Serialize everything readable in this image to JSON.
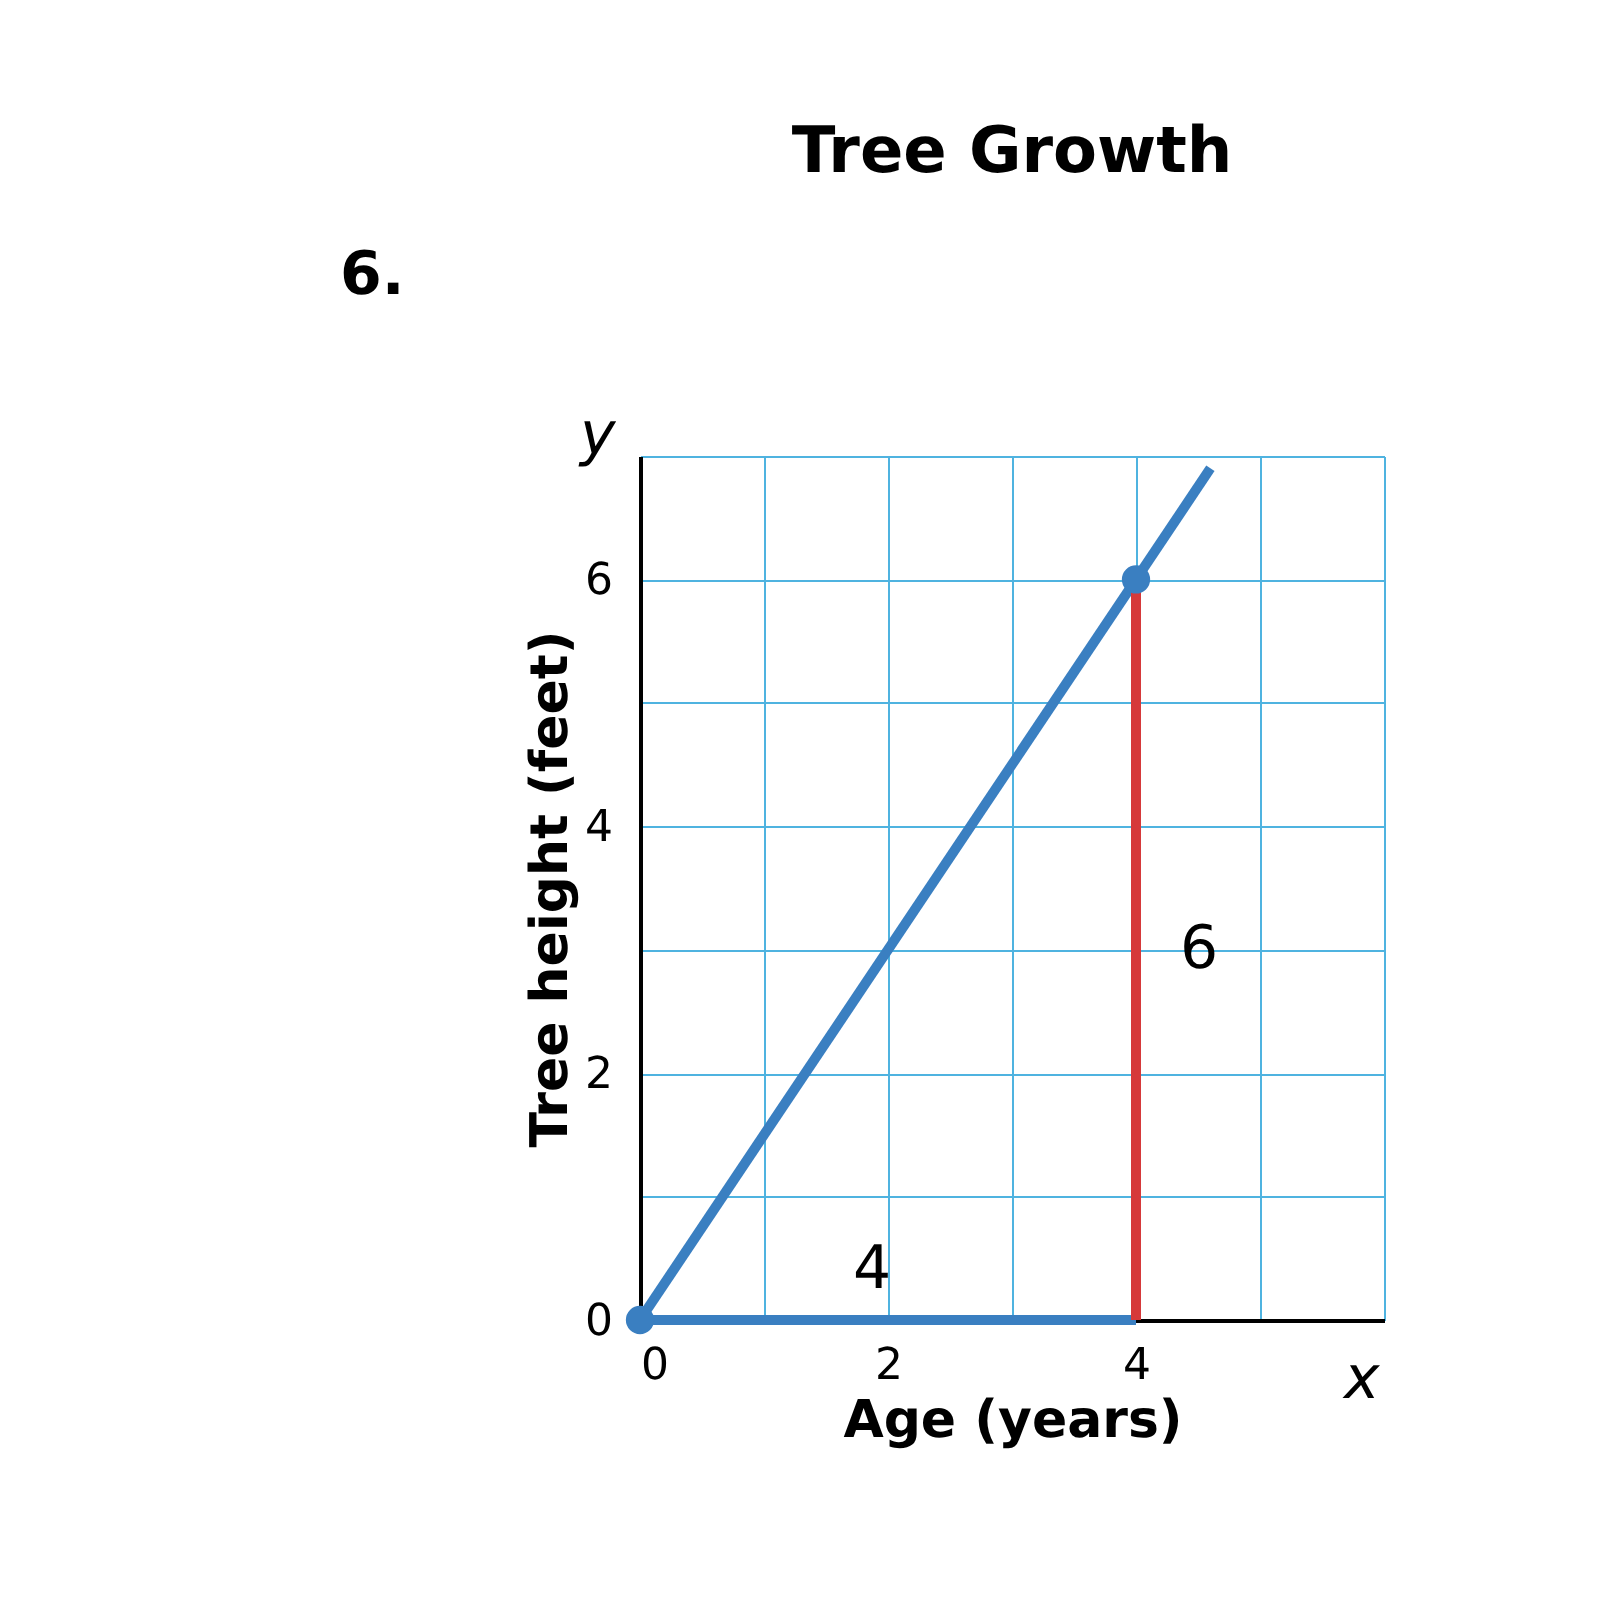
{
  "chart_data": {
    "type": "line",
    "title": "Tree Growth",
    "xlabel": "Age (years)",
    "ylabel": "Tree height (feet)",
    "xlim": [
      0,
      6
    ],
    "ylim": [
      0,
      7
    ],
    "xticks": [
      0,
      {
        "value": 1,
        "label": null
      },
      2,
      {
        "value": 3,
        "label": null
      },
      4,
      {
        "value": 5,
        "label": null
      },
      {
        "value": 6,
        "label": null
      }
    ],
    "yticks": [
      0,
      {
        "value": 1,
        "label": null
      },
      2,
      {
        "value": 3,
        "label": null
      },
      4,
      {
        "value": 5,
        "label": null
      },
      6,
      {
        "value": 7,
        "label": null
      }
    ],
    "grid": true,
    "series": [
      {
        "color": "#3a7fc1",
        "x": [
          0,
          4.6
        ],
        "values": [
          0,
          6.9
        ],
        "marker": "none"
      },
      {
        "type": "line",
        "color": "#3a7fc1",
        "x": [
          0,
          4
        ],
        "values": [
          0,
          0
        ],
        "marker": "none"
      },
      {
        "type": "line",
        "color": "#d6393a",
        "x": [
          4,
          4
        ],
        "values": [
          0,
          6
        ],
        "marker": "none"
      },
      {
        "type": "scatter",
        "color": "#3a7fc1",
        "x": [
          0,
          4
        ],
        "values": [
          0,
          6
        ],
        "marker": "circle"
      }
    ],
    "annotations": [
      "6.",
      "x",
      "y",
      "4",
      "6"
    ]
  }
}
